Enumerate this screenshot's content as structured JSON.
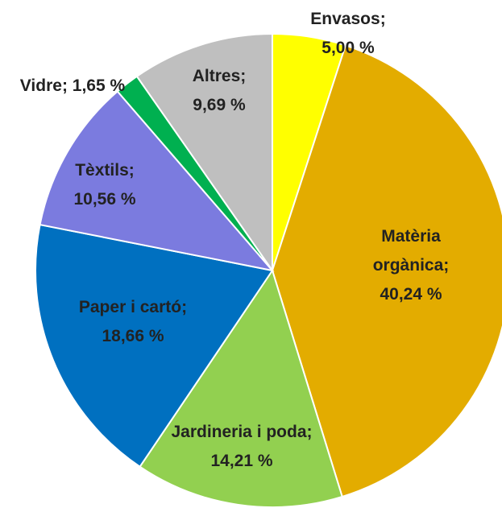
{
  "chart_data": {
    "type": "pie",
    "categories": [
      "Envasos",
      "Matèria orgànica",
      "Jardineria i poda",
      "Paper i cartó",
      "Tèxtils",
      "Vidre",
      "Altres"
    ],
    "values": [
      5.0,
      40.24,
      14.21,
      18.66,
      10.56,
      1.65,
      9.69
    ],
    "value_labels": [
      "5,00 %",
      "40,24 %",
      "14,21 %",
      "18,66 %",
      "10,56 %",
      "1,65 %",
      "9,69 %"
    ],
    "label_separator": ";",
    "colors": [
      "#ffff00",
      "#e3ac00",
      "#92d050",
      "#0070c0",
      "#7b7bdf",
      "#00b050",
      "#bfbfbf"
    ]
  }
}
